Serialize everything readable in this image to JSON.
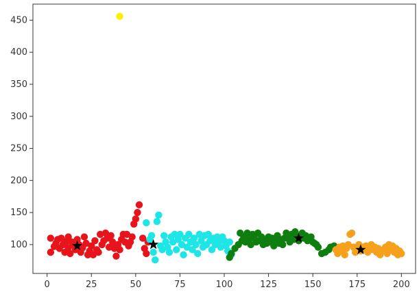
{
  "chart_data": {
    "type": "scatter",
    "title": "",
    "xlabel": "",
    "ylabel": "",
    "xlim": [
      -8,
      208
    ],
    "ylim": [
      55,
      475
    ],
    "xticks": [
      0,
      25,
      50,
      75,
      100,
      125,
      150,
      175,
      200
    ],
    "yticks": [
      100,
      150,
      200,
      250,
      300,
      350,
      400,
      450
    ],
    "grid": false,
    "legend": "none",
    "series": [
      {
        "color": "#e8141b",
        "marker": "circle",
        "points": [
          [
            2,
            88
          ],
          [
            2,
            110
          ],
          [
            4,
            97
          ],
          [
            5,
            102
          ],
          [
            6,
            108
          ],
          [
            7,
            94
          ],
          [
            8,
            110
          ],
          [
            9,
            100
          ],
          [
            10,
            88
          ],
          [
            11,
            105
          ],
          [
            12,
            95
          ],
          [
            12,
            112
          ],
          [
            13,
            86
          ],
          [
            14,
            104
          ],
          [
            15,
            99
          ],
          [
            16,
            92
          ],
          [
            17,
            108
          ],
          [
            18,
            100
          ],
          [
            19,
            88
          ],
          [
            20,
            95
          ],
          [
            21,
            112
          ],
          [
            22,
            102
          ],
          [
            23,
            84
          ],
          [
            24,
            90
          ],
          [
            25,
            98
          ],
          [
            26,
            84
          ],
          [
            27,
            106
          ],
          [
            28,
            92
          ],
          [
            29,
            88
          ],
          [
            30,
            116
          ],
          [
            31,
            100
          ],
          [
            32,
            106
          ],
          [
            33,
            118
          ],
          [
            34,
            110
          ],
          [
            35,
            96
          ],
          [
            36,
            114
          ],
          [
            37,
            104
          ],
          [
            38,
            94
          ],
          [
            39,
            82
          ],
          [
            40,
            100
          ],
          [
            41,
            92
          ],
          [
            42,
            108
          ],
          [
            43,
            116
          ],
          [
            44,
            104
          ],
          [
            45,
            116
          ],
          [
            46,
            98
          ],
          [
            47,
            104
          ],
          [
            48,
            112
          ],
          [
            49,
            132
          ],
          [
            50,
            140
          ],
          [
            51,
            150
          ],
          [
            52,
            162
          ],
          [
            54,
            110
          ],
          [
            55,
            94
          ],
          [
            56,
            86
          ],
          [
            57,
            104
          ]
        ]
      },
      {
        "color": "#1ee6e6",
        "marker": "circle",
        "points": [
          [
            56,
            134
          ],
          [
            58,
            108
          ],
          [
            59,
            114
          ],
          [
            60,
            88
          ],
          [
            61,
            76
          ],
          [
            62,
            136
          ],
          [
            63,
            146
          ],
          [
            64,
            98
          ],
          [
            65,
            92
          ],
          [
            66,
            114
          ],
          [
            67,
            104
          ],
          [
            68,
            96
          ],
          [
            69,
            88
          ],
          [
            70,
            112
          ],
          [
            71,
            104
          ],
          [
            72,
            116
          ],
          [
            73,
            92
          ],
          [
            74,
            108
          ],
          [
            75,
            116
          ],
          [
            76,
            100
          ],
          [
            77,
            84
          ],
          [
            78,
            110
          ],
          [
            79,
            96
          ],
          [
            80,
            116
          ],
          [
            81,
            104
          ],
          [
            82,
            92
          ],
          [
            83,
            110
          ],
          [
            84,
            100
          ],
          [
            85,
            86
          ],
          [
            86,
            116
          ],
          [
            87,
            106
          ],
          [
            88,
            96
          ],
          [
            89,
            114
          ],
          [
            90,
            100
          ],
          [
            91,
            116
          ],
          [
            92,
            106
          ],
          [
            93,
            92
          ],
          [
            94,
            110
          ],
          [
            95,
            100
          ],
          [
            96,
            112
          ],
          [
            97,
            104
          ],
          [
            98,
            96
          ],
          [
            99,
            112
          ],
          [
            100,
            106
          ],
          [
            101,
            98
          ],
          [
            102,
            90
          ],
          [
            103,
            104
          ],
          [
            104,
            84
          ]
        ]
      },
      {
        "color": "#0e7f0e",
        "marker": "circle",
        "points": [
          [
            103,
            80
          ],
          [
            104,
            86
          ],
          [
            106,
            94
          ],
          [
            108,
            100
          ],
          [
            109,
            118
          ],
          [
            110,
            106
          ],
          [
            111,
            112
          ],
          [
            112,
            104
          ],
          [
            113,
            118
          ],
          [
            114,
            108
          ],
          [
            115,
            100
          ],
          [
            116,
            116
          ],
          [
            117,
            110
          ],
          [
            118,
            104
          ],
          [
            119,
            118
          ],
          [
            120,
            106
          ],
          [
            121,
            112
          ],
          [
            122,
            100
          ],
          [
            123,
            108
          ],
          [
            124,
            102
          ],
          [
            125,
            112
          ],
          [
            126,
            104
          ],
          [
            127,
            110
          ],
          [
            128,
            98
          ],
          [
            129,
            106
          ],
          [
            130,
            114
          ],
          [
            131,
            102
          ],
          [
            132,
            108
          ],
          [
            133,
            100
          ],
          [
            134,
            110
          ],
          [
            135,
            118
          ],
          [
            136,
            112
          ],
          [
            137,
            104
          ],
          [
            138,
            116
          ],
          [
            139,
            108
          ],
          [
            140,
            120
          ],
          [
            141,
            114
          ],
          [
            142,
            106
          ],
          [
            143,
            112
          ],
          [
            144,
            118
          ],
          [
            145,
            110
          ],
          [
            146,
            114
          ],
          [
            147,
            106
          ],
          [
            148,
            108
          ],
          [
            149,
            112
          ],
          [
            150,
            104
          ],
          [
            151,
            102
          ],
          [
            152,
            100
          ],
          [
            153,
            96
          ],
          [
            155,
            86
          ],
          [
            157,
            88
          ],
          [
            159,
            92
          ],
          [
            160,
            96
          ],
          [
            162,
            98
          ]
        ]
      },
      {
        "color": "#f5a11d",
        "marker": "circle",
        "points": [
          [
            163,
            92
          ],
          [
            164,
            86
          ],
          [
            165,
            96
          ],
          [
            166,
            90
          ],
          [
            167,
            98
          ],
          [
            168,
            84
          ],
          [
            169,
            94
          ],
          [
            170,
            100
          ],
          [
            171,
            116
          ],
          [
            172,
            118
          ],
          [
            173,
            96
          ],
          [
            174,
            88
          ],
          [
            175,
            94
          ],
          [
            176,
            100
          ],
          [
            177,
            90
          ],
          [
            178,
            96
          ],
          [
            179,
            92
          ],
          [
            180,
            98
          ],
          [
            181,
            88
          ],
          [
            182,
            94
          ],
          [
            183,
            100
          ],
          [
            184,
            92
          ],
          [
            185,
            96
          ],
          [
            186,
            88
          ],
          [
            187,
            94
          ],
          [
            188,
            84
          ],
          [
            189,
            90
          ],
          [
            190,
            92
          ],
          [
            191,
            96
          ],
          [
            192,
            86
          ],
          [
            193,
            100
          ],
          [
            194,
            92
          ],
          [
            195,
            98
          ],
          [
            196,
            88
          ],
          [
            197,
            94
          ],
          [
            198,
            84
          ],
          [
            199,
            90
          ],
          [
            200,
            86
          ]
        ]
      },
      {
        "color": "#ffef00",
        "marker": "circle",
        "points": [
          [
            41,
            456
          ]
        ]
      },
      {
        "color": "#000000",
        "marker": "star",
        "points": [
          [
            17,
            98
          ],
          [
            60,
            100
          ],
          [
            142,
            110
          ],
          [
            177,
            92
          ]
        ]
      }
    ]
  }
}
